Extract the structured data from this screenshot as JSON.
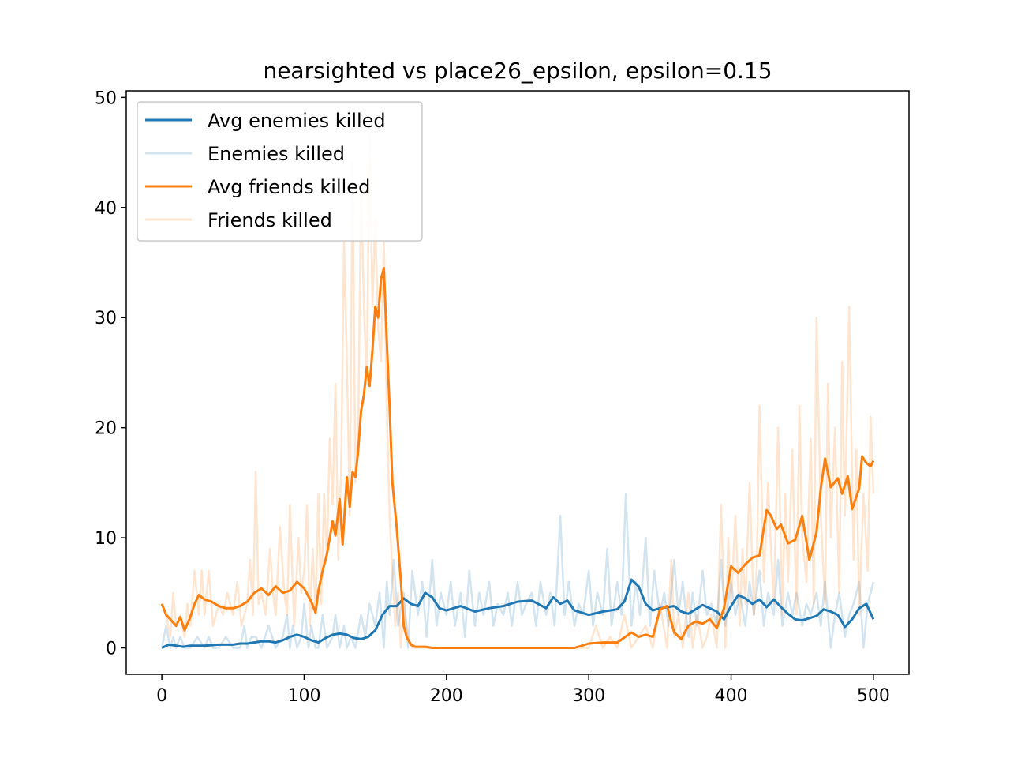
{
  "chart_data": {
    "type": "line",
    "title": "nearsighted vs place26_epsilon, epsilon=0.15",
    "xlabel": "",
    "ylabel": "",
    "xlim": [
      -25,
      525
    ],
    "ylim": [
      -2.4,
      50.6
    ],
    "xticks": [
      0,
      100,
      200,
      300,
      400,
      500
    ],
    "yticks": [
      0,
      10,
      20,
      30,
      40,
      50
    ],
    "grid": false,
    "legend_position": "upper-left",
    "colors": {
      "enemies": "#1f77b4",
      "friends": "#ff7f0e"
    },
    "series": [
      {
        "name": "Avg enemies killed",
        "color": "#1f77b4",
        "alpha": 1.0,
        "x": [
          0,
          5,
          10,
          15,
          20,
          30,
          40,
          50,
          55,
          60,
          65,
          70,
          75,
          80,
          85,
          90,
          95,
          100,
          105,
          110,
          115,
          120,
          125,
          130,
          135,
          140,
          145,
          150,
          155,
          160,
          165,
          170,
          175,
          180,
          185,
          190,
          195,
          200,
          210,
          220,
          230,
          240,
          250,
          260,
          270,
          275,
          280,
          285,
          290,
          300,
          310,
          320,
          325,
          330,
          335,
          340,
          345,
          350,
          355,
          360,
          365,
          370,
          375,
          380,
          390,
          395,
          400,
          405,
          410,
          415,
          420,
          425,
          430,
          435,
          440,
          445,
          450,
          455,
          460,
          465,
          470,
          475,
          480,
          485,
          490,
          495,
          500
        ],
        "y": [
          0.0,
          0.3,
          0.2,
          0.1,
          0.2,
          0.2,
          0.3,
          0.3,
          0.4,
          0.4,
          0.5,
          0.6,
          0.6,
          0.5,
          0.7,
          1.0,
          1.2,
          1.0,
          0.7,
          0.5,
          0.9,
          1.2,
          1.3,
          1.2,
          0.9,
          0.8,
          1.0,
          1.6,
          3.0,
          3.8,
          3.8,
          4.5,
          4.0,
          3.8,
          5.0,
          4.6,
          3.6,
          3.4,
          3.8,
          3.3,
          3.6,
          3.8,
          4.2,
          4.3,
          3.6,
          4.6,
          4.0,
          4.3,
          3.4,
          3.0,
          3.3,
          3.5,
          4.2,
          6.2,
          5.6,
          4.0,
          3.4,
          3.6,
          3.7,
          3.8,
          3.3,
          3.1,
          3.5,
          3.9,
          3.3,
          2.6,
          3.8,
          4.8,
          4.5,
          4.0,
          4.4,
          3.7,
          4.4,
          3.7,
          3.1,
          2.6,
          2.5,
          2.7,
          2.9,
          3.5,
          3.3,
          3.0,
          1.9,
          2.6,
          3.6,
          4.0,
          2.6
        ]
      },
      {
        "name": "Enemies killed",
        "color": "#1f77b4",
        "alpha": 0.2,
        "x": [
          0,
          3,
          6,
          8,
          10,
          13,
          16,
          20,
          25,
          30,
          33,
          36,
          40,
          45,
          50,
          55,
          58,
          60,
          63,
          66,
          70,
          75,
          80,
          85,
          88,
          90,
          92,
          95,
          98,
          100,
          103,
          105,
          108,
          110,
          113,
          116,
          120,
          122,
          125,
          128,
          130,
          133,
          136,
          140,
          143,
          146,
          150,
          153,
          156,
          158,
          160,
          163,
          166,
          170,
          173,
          176,
          180,
          183,
          186,
          190,
          193,
          196,
          200,
          203,
          206,
          210,
          213,
          216,
          220,
          223,
          226,
          230,
          233,
          236,
          240,
          243,
          246,
          250,
          253,
          256,
          260,
          263,
          266,
          270,
          273,
          276,
          280,
          283,
          286,
          290,
          293,
          296,
          300,
          303,
          306,
          310,
          313,
          316,
          320,
          323,
          326,
          330,
          333,
          336,
          340,
          343,
          346,
          350,
          353,
          356,
          360,
          363,
          366,
          370,
          373,
          376,
          380,
          383,
          386,
          390,
          393,
          396,
          400,
          403,
          406,
          410,
          413,
          416,
          420,
          423,
          426,
          430,
          433,
          436,
          440,
          443,
          446,
          450,
          453,
          456,
          460,
          463,
          466,
          470,
          473,
          476,
          480,
          483,
          486,
          490,
          493,
          496,
          500
        ],
        "y": [
          0,
          2,
          0,
          1,
          0,
          1,
          0,
          0,
          1,
          0,
          1,
          0,
          0,
          1,
          0,
          0,
          2,
          0,
          1,
          1,
          0,
          2,
          0,
          1,
          3,
          0,
          2,
          0,
          1,
          4,
          0,
          2,
          0,
          0,
          3,
          0,
          1,
          3,
          0,
          2,
          0,
          1,
          0,
          3,
          1,
          4,
          2,
          5,
          0,
          6,
          3,
          8,
          2,
          5,
          0,
          7,
          3,
          6,
          1,
          8,
          2,
          5,
          3,
          6,
          2,
          5,
          1,
          7,
          2,
          5,
          3,
          6,
          2,
          4,
          3,
          5,
          2,
          6,
          3,
          4,
          5,
          2,
          6,
          3,
          5,
          2,
          12,
          3,
          6,
          2,
          4,
          3,
          7,
          2,
          5,
          3,
          9,
          2,
          6,
          3,
          14,
          2,
          6,
          3,
          10,
          2,
          7,
          3,
          5,
          2,
          8,
          3,
          6,
          1,
          5,
          2,
          7,
          3,
          4,
          2,
          8,
          2,
          6,
          3,
          5,
          2,
          6,
          3,
          7,
          2,
          5,
          3,
          8,
          2,
          5,
          3,
          5,
          2,
          4,
          3,
          5,
          2,
          6,
          0,
          3,
          5,
          1,
          3,
          4,
          6,
          0,
          4,
          6
        ]
      },
      {
        "name": "Avg friends killed",
        "color": "#ff7f0e",
        "alpha": 1.0,
        "x": [
          0,
          3,
          6,
          10,
          13,
          16,
          18,
          20,
          23,
          26,
          30,
          35,
          40,
          45,
          50,
          55,
          60,
          65,
          70,
          75,
          80,
          85,
          90,
          95,
          100,
          105,
          108,
          110,
          113,
          116,
          118,
          120,
          122,
          125,
          127,
          130,
          132,
          134,
          136,
          138,
          140,
          142,
          144,
          146,
          148,
          150,
          152,
          154,
          156,
          158,
          160,
          162,
          165,
          168,
          170,
          172,
          175,
          178,
          182,
          185,
          190,
          195,
          200,
          210,
          220,
          230,
          240,
          250,
          260,
          270,
          280,
          290,
          300,
          310,
          320,
          330,
          335,
          340,
          345,
          350,
          355,
          360,
          365,
          370,
          375,
          380,
          385,
          390,
          395,
          400,
          405,
          410,
          415,
          420,
          425,
          428,
          432,
          435,
          440,
          445,
          450,
          455,
          460,
          463,
          466,
          470,
          475,
          478,
          482,
          485,
          490,
          492,
          495,
          498,
          500
        ],
        "y": [
          4.0,
          3.0,
          2.6,
          2.0,
          2.8,
          1.6,
          2.2,
          2.8,
          4.0,
          4.8,
          4.4,
          4.2,
          3.8,
          3.6,
          3.6,
          3.8,
          4.2,
          5.0,
          5.4,
          4.8,
          5.6,
          5.0,
          5.2,
          6.0,
          5.4,
          4.2,
          3.2,
          5.2,
          7.0,
          8.5,
          10.0,
          11.5,
          10.2,
          13.5,
          9.4,
          15.5,
          12.8,
          16.0,
          15.5,
          18.0,
          21.5,
          23.0,
          25.5,
          23.8,
          27.0,
          31.0,
          30.0,
          33.5,
          34.5,
          28.0,
          22.0,
          15.0,
          11.0,
          6.0,
          2.0,
          1.0,
          0.3,
          0.1,
          0.1,
          0.1,
          0.0,
          0.0,
          0.0,
          0.0,
          0.0,
          0.0,
          0.0,
          0.0,
          0.0,
          0.0,
          0.0,
          0.0,
          0.4,
          0.5,
          0.5,
          1.4,
          1.0,
          1.2,
          1.0,
          3.5,
          3.8,
          1.4,
          0.8,
          2.0,
          2.4,
          2.2,
          2.6,
          1.8,
          3.6,
          7.4,
          6.8,
          7.6,
          8.2,
          8.4,
          12.5,
          12.0,
          10.8,
          11.2,
          9.5,
          9.8,
          12.0,
          8.0,
          10.5,
          14.5,
          17.2,
          14.6,
          15.4,
          14.0,
          15.6,
          12.6,
          14.5,
          17.4,
          16.8,
          16.5,
          17.0
        ]
      },
      {
        "name": "Friends killed",
        "color": "#ff7f0e",
        "alpha": 0.2,
        "x": [
          0,
          3,
          6,
          8,
          10,
          13,
          16,
          18,
          20,
          23,
          26,
          28,
          30,
          33,
          36,
          40,
          43,
          46,
          50,
          53,
          56,
          60,
          62,
          64,
          66,
          68,
          70,
          73,
          76,
          78,
          80,
          83,
          86,
          88,
          90,
          93,
          96,
          98,
          100,
          102,
          104,
          106,
          108,
          110,
          112,
          114,
          116,
          118,
          120,
          122,
          124,
          126,
          128,
          130,
          132,
          134,
          136,
          138,
          140,
          142,
          144,
          146,
          148,
          150,
          152,
          154,
          156,
          158,
          160,
          162,
          164,
          166,
          168,
          170,
          173,
          176,
          180,
          190,
          200,
          210,
          220,
          230,
          240,
          250,
          260,
          270,
          280,
          290,
          300,
          305,
          310,
          315,
          320,
          325,
          330,
          335,
          340,
          345,
          350,
          355,
          358,
          360,
          363,
          366,
          370,
          373,
          376,
          380,
          383,
          386,
          390,
          393,
          396,
          398,
          400,
          403,
          406,
          408,
          410,
          413,
          416,
          418,
          420,
          423,
          426,
          428,
          430,
          433,
          436,
          438,
          440,
          443,
          446,
          448,
          450,
          453,
          456,
          458,
          460,
          463,
          466,
          468,
          470,
          473,
          476,
          478,
          480,
          483,
          486,
          488,
          490,
          493,
          496,
          498,
          500
        ],
        "y": [
          4,
          3,
          1,
          5,
          2,
          3,
          1,
          4,
          2,
          7,
          3,
          7,
          3,
          7,
          2,
          4,
          3,
          5,
          3,
          6,
          2,
          4,
          8,
          3,
          16,
          4,
          5,
          3,
          9,
          5,
          3,
          11,
          5,
          3,
          13,
          2,
          10,
          5,
          7,
          13,
          2,
          9,
          3,
          14,
          4,
          14,
          8,
          19,
          13,
          24,
          8,
          16,
          37,
          26,
          12,
          44,
          15,
          20,
          42,
          31,
          24,
          47,
          31,
          39,
          29,
          26,
          37,
          22,
          12,
          7,
          2,
          5,
          0,
          4,
          1,
          0,
          0,
          0,
          0,
          0,
          0,
          0,
          0,
          0,
          0,
          0,
          0,
          0,
          0,
          2,
          0,
          1,
          0,
          3,
          0,
          1,
          2,
          0,
          4,
          0,
          8,
          1,
          3,
          0,
          5,
          0,
          3,
          0,
          1,
          3,
          0,
          13,
          0,
          10,
          4,
          12,
          2,
          9,
          4,
          15,
          3,
          7,
          22,
          6,
          15,
          9,
          4,
          20,
          3,
          14,
          6,
          18,
          3,
          22,
          10,
          6,
          19,
          4,
          30,
          12,
          4,
          24,
          10,
          20,
          5,
          26,
          12,
          31,
          8,
          18,
          3,
          14,
          7,
          21,
          14
        ]
      }
    ]
  }
}
